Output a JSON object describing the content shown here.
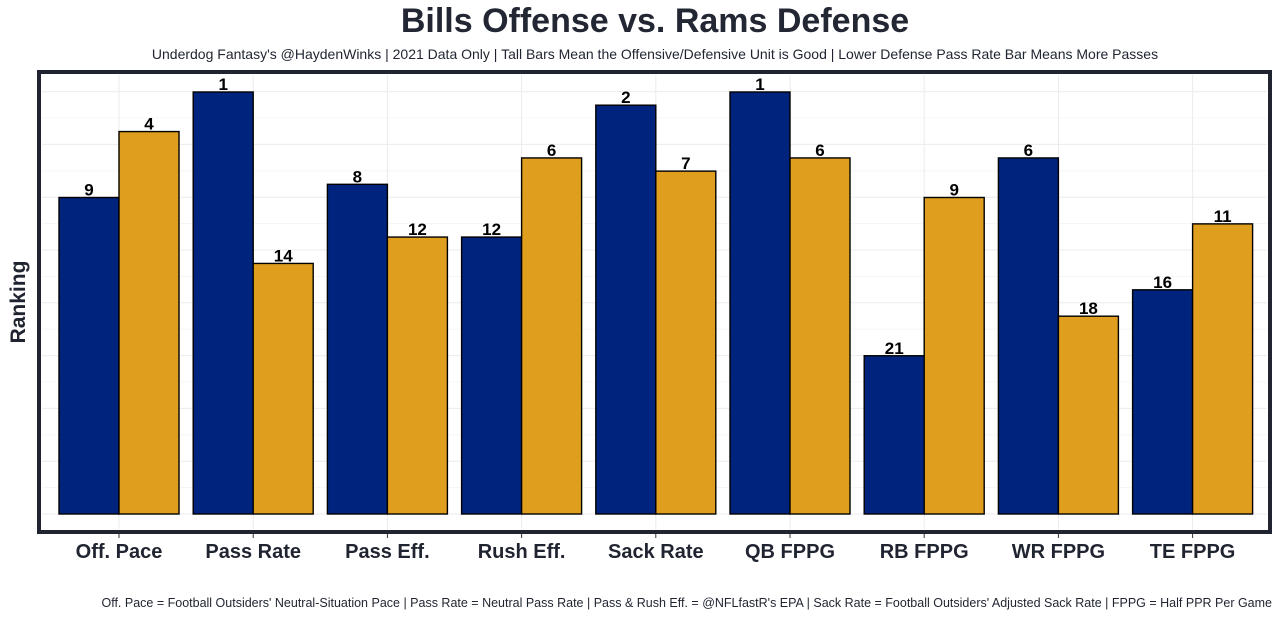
{
  "chart_data": {
    "type": "bar",
    "title": "Bills Offense vs. Rams Defense",
    "subtitle": "Underdog Fantasy's @HaydenWinks | 2021 Data Only | Tall Bars Mean the Offensive/Defensive Unit is Good | Lower Defense Pass Rate Bar Means More Passes",
    "caption": "Off. Pace = Football Outsiders' Neutral-Situation Pace | Pass Rate = Neutral Pass Rate | Pass & Rush Eff. = @NFLfastR's EPA | Sack Rate = Football Outsiders' Adjusted Sack Rate | FPPG = Half PPR Per Game",
    "xlabel": "",
    "ylabel": "Ranking",
    "categories": [
      "Off. Pace",
      "Pass Rate",
      "Pass Eff.",
      "Rush Eff.",
      "Sack Rate",
      "QB FPPG",
      "RB FPPG",
      "WR FPPG",
      "TE FPPG"
    ],
    "series": [
      {
        "name": "Bills Offense",
        "color": "#00247d",
        "values": [
          9,
          1,
          8,
          12,
          2,
          1,
          21,
          6,
          16
        ]
      },
      {
        "name": "Rams Defense",
        "color": "#e09e1f",
        "values": [
          4,
          14,
          12,
          6,
          7,
          6,
          9,
          18,
          11
        ]
      }
    ],
    "rank_scale": {
      "best": 1,
      "worst": 33
    },
    "grid": true
  }
}
